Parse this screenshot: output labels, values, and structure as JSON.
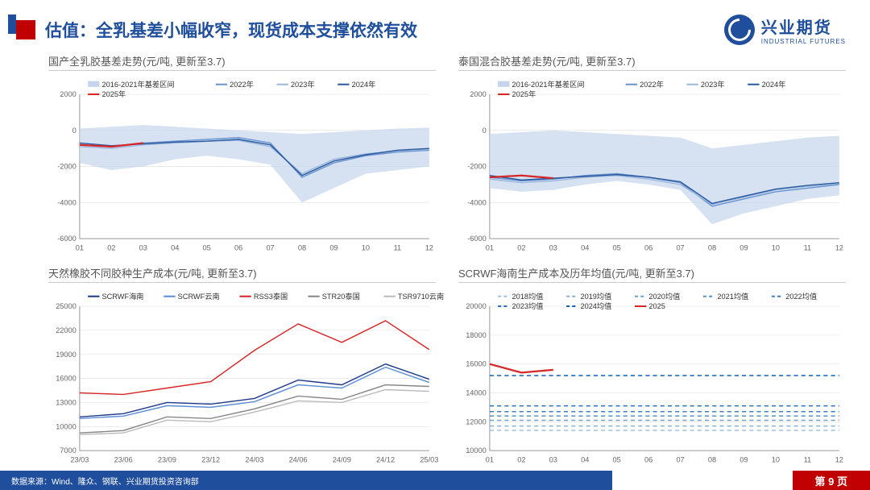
{
  "header": {
    "title": "估值：全乳基差小幅收窄，现货成本支撑依然有效",
    "logo_cn": "兴业期货",
    "logo_en": "INDUSTRIAL FUTURES"
  },
  "footer": {
    "source": "数据来源：Wind、隆众、钢联、兴业期货投资咨询部",
    "page": "第 9 页"
  },
  "colors": {
    "brand_blue": "#1f4e9c",
    "brand_red": "#c00000",
    "band_fill": "#c5d4ec",
    "line_2022": "#6894d0",
    "line_2023": "#9cb8de",
    "line_2024": "#2c5aa0",
    "line_2025": "#d62728",
    "scrwf_hainan": "#1f3a8a",
    "scrwf_yunnan": "#5b8dd6",
    "rss3": "#d62728",
    "str20": "#888888",
    "tsr9710": "#bbbbbb",
    "grid": "#dddddd",
    "axis": "#999999",
    "text": "#666666"
  },
  "charts": [
    {
      "title": "国产全乳胶基差走势(元/吨, 更新至3.7)",
      "type": "line-band",
      "xticks": [
        "01",
        "02",
        "03",
        "04",
        "05",
        "06",
        "07",
        "08",
        "09",
        "10",
        "11",
        "12"
      ],
      "ylim": [
        -6000,
        2000
      ],
      "ytick_step": 2000,
      "legend": [
        {
          "label": "2016-2021年基差区间",
          "type": "band",
          "color": "#c5d4ec"
        },
        {
          "label": "2022年",
          "type": "line",
          "color": "#6894d0"
        },
        {
          "label": "2023年",
          "type": "line",
          "color": "#9cb8de"
        },
        {
          "label": "2024年",
          "type": "line",
          "color": "#2c5aa0"
        },
        {
          "label": "2025年",
          "type": "line",
          "color": "#d62728"
        }
      ],
      "band_upper": [
        100,
        200,
        300,
        200,
        100,
        0,
        -100,
        -200,
        -100,
        0,
        100,
        150
      ],
      "band_lower": [
        -1800,
        -2200,
        -2000,
        -1600,
        -1400,
        -1600,
        -1900,
        -4000,
        -3200,
        -2400,
        -2200,
        -2000
      ],
      "series": {
        "2022": [
          -800,
          -900,
          -700,
          -600,
          -500,
          -400,
          -700,
          -2600,
          -1800,
          -1400,
          -1200,
          -1100
        ],
        "2023": [
          -900,
          -1000,
          -800,
          -700,
          -600,
          -550,
          -900,
          -2400,
          -1600,
          -1300,
          -1150,
          -1050
        ],
        "2024": [
          -700,
          -850,
          -750,
          -650,
          -600,
          -500,
          -800,
          -2500,
          -1700,
          -1350,
          -1100,
          -1000
        ],
        "2025": [
          -800,
          -900,
          -700
        ]
      }
    },
    {
      "title": "泰国混合胶基差走势(元/吨, 更新至3.7)",
      "type": "line-band",
      "xticks": [
        "01",
        "02",
        "03",
        "04",
        "05",
        "06",
        "07",
        "08",
        "09",
        "10",
        "11",
        "12"
      ],
      "ylim": [
        -6000,
        2000
      ],
      "ytick_step": 2000,
      "legend": [
        {
          "label": "2016-2021年基差区间",
          "type": "band",
          "color": "#c5d4ec"
        },
        {
          "label": "2022年",
          "type": "line",
          "color": "#6894d0"
        },
        {
          "label": "2023年",
          "type": "line",
          "color": "#9cb8de"
        },
        {
          "label": "2024年",
          "type": "line",
          "color": "#2c5aa0"
        },
        {
          "label": "2025年",
          "type": "line",
          "color": "#d62728"
        }
      ],
      "band_upper": [
        -200,
        -100,
        0,
        -100,
        -200,
        -300,
        -400,
        -1000,
        -800,
        -600,
        -400,
        -300
      ],
      "band_lower": [
        -3200,
        -3400,
        -3300,
        -3000,
        -2800,
        -3000,
        -3300,
        -5200,
        -4600,
        -4200,
        -3800,
        -3600
      ],
      "series": {
        "2022": [
          -2600,
          -2800,
          -2700,
          -2500,
          -2400,
          -2600,
          -2900,
          -4200,
          -3800,
          -3400,
          -3200,
          -3000
        ],
        "2023": [
          -2700,
          -2900,
          -2800,
          -2600,
          -2500,
          -2700,
          -3000,
          -4100,
          -3700,
          -3300,
          -3100,
          -2950
        ],
        "2024": [
          -2500,
          -2750,
          -2650,
          -2550,
          -2450,
          -2600,
          -2850,
          -4050,
          -3650,
          -3250,
          -3050,
          -2900
        ],
        "2025": [
          -2600,
          -2500,
          -2650
        ]
      }
    },
    {
      "title": "天然橡胶不同胶种生产成本(元/吨, 更新至3.7)",
      "type": "line",
      "xticks": [
        "23/03",
        "23/06",
        "23/09",
        "23/12",
        "24/03",
        "24/06",
        "24/09",
        "24/12",
        "25/03"
      ],
      "ylim": [
        7000,
        25000
      ],
      "ytick_step": 3000,
      "legend": [
        {
          "label": "SCRWF海南",
          "type": "line",
          "color": "#1f3a8a"
        },
        {
          "label": "SCRWF云南",
          "type": "line",
          "color": "#5b8dd6"
        },
        {
          "label": "RSS3泰国",
          "type": "line",
          "color": "#d62728"
        },
        {
          "label": "STR20泰国",
          "type": "line",
          "color": "#888888"
        },
        {
          "label": "TSR9710云南",
          "type": "line",
          "color": "#bbbbbb"
        }
      ],
      "series": {
        "SCRWF海南": [
          11200,
          11600,
          13000,
          12800,
          13500,
          15800,
          15200,
          17800,
          15900
        ],
        "SCRWF云南": [
          11000,
          11300,
          12600,
          12400,
          13100,
          15200,
          14800,
          17400,
          15500
        ],
        "RSS3泰国": [
          14200,
          14000,
          14800,
          15600,
          19500,
          22800,
          20500,
          23200,
          19600
        ],
        "STR20泰国": [
          9200,
          9500,
          11200,
          11000,
          12200,
          13800,
          13400,
          15200,
          15000
        ],
        "TSR9710云南": [
          9000,
          9200,
          10800,
          10600,
          11800,
          13200,
          13000,
          14600,
          14400
        ]
      }
    },
    {
      "title": "SCRWF海南生产成本及历年均值(元/吨, 更新至3.7)",
      "type": "line-dashed",
      "xticks": [
        "01",
        "02",
        "03",
        "04",
        "05",
        "06",
        "07",
        "08",
        "09",
        "10",
        "11",
        "12"
      ],
      "ylim": [
        10000,
        20000
      ],
      "ytick_step": 2000,
      "legend": [
        {
          "label": "2018均值",
          "type": "dash",
          "color": "#a0c0e0"
        },
        {
          "label": "2019均值",
          "type": "dash",
          "color": "#88b0d8"
        },
        {
          "label": "2020均值",
          "type": "dash",
          "color": "#70a0d0"
        },
        {
          "label": "2021均值",
          "type": "dash",
          "color": "#5890c8"
        },
        {
          "label": "2022均值",
          "type": "dash",
          "color": "#4080c0"
        },
        {
          "label": "2023均值",
          "type": "dash",
          "color": "#2870b8"
        },
        {
          "label": "2024均值",
          "type": "dash",
          "color": "#1060b0"
        },
        {
          "label": "2025",
          "type": "line",
          "color": "#d62728"
        }
      ],
      "h_lines": {
        "2018均值": 11400,
        "2019均值": 11700,
        "2020均值": 12100,
        "2021均值": 12400,
        "2022均值": 12700,
        "2023均值": 13100,
        "2024均值": 15200
      },
      "series": {
        "2025": [
          16000,
          15400,
          15600
        ]
      }
    }
  ]
}
